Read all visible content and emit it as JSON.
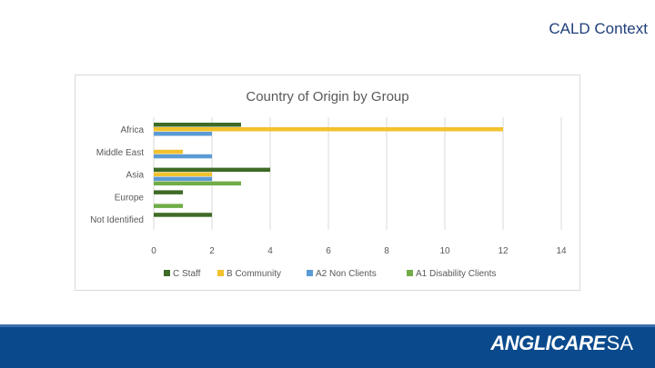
{
  "slide": {
    "title": "CALD Context"
  },
  "logo": {
    "main": "ANGLICARE",
    "suffix": "SA"
  },
  "colors": {
    "staff": "#3e6b26",
    "community": "#f2c12e",
    "non_clients": "#5b9bd5",
    "disability_clients": "#70ad47"
  },
  "chart_data": {
    "type": "bar",
    "orientation": "horizontal",
    "title": "Country of Origin by Group",
    "categories": [
      "Africa",
      "Middle East",
      "Asia",
      "Europe",
      "Not Identified"
    ],
    "xlim": [
      0,
      14
    ],
    "xticks": [
      "0",
      "2",
      "4",
      "6",
      "8",
      "10",
      "12",
      "14"
    ],
    "grid": true,
    "legend_position": "bottom",
    "series": [
      {
        "name": "C   Staff",
        "key": "staff",
        "values": [
          3,
          0,
          4,
          1,
          2
        ]
      },
      {
        "name": "B   Community",
        "key": "community",
        "values": [
          12,
          1,
          2,
          0,
          0
        ]
      },
      {
        "name": "A2  Non Clients",
        "key": "non_clients",
        "values": [
          2,
          2,
          2,
          0,
          0
        ]
      },
      {
        "name": "A1  Disability Clients",
        "key": "disability_clients",
        "values": [
          0,
          0,
          3,
          1,
          0
        ]
      }
    ]
  }
}
